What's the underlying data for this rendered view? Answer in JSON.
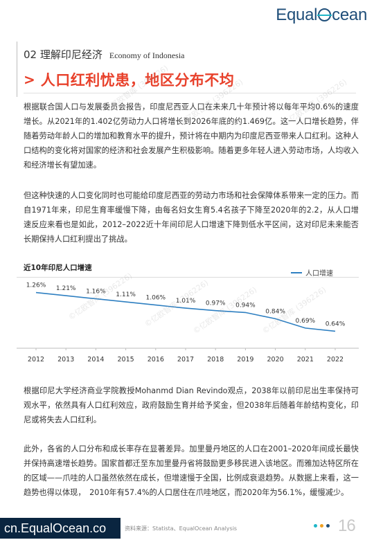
{
  "header": {
    "logo_before": "Equal",
    "logo_after": "cean",
    "section_cn": "02 理解印尼经济",
    "section_en": "Economy of Indonesia",
    "title_chevron": ">",
    "title": "人口红利忧患，地区分布不均"
  },
  "body": {
    "p1": "根据联合国人口与发展委员会报告，印度尼西亚人口在未来几十年预计将以每年平均0.6%的速度增长。从2021年的1.402亿劳动力人口将增长到2026年底的约1.469亿。这一人口增长趋势，伴随着劳动年龄人口的增加和教育水平的提升，预计将在中期内为印度尼西亚带来人口红利。这种人口结构的变化将对国家的经济和社会发展产生积极影响。随着更多年轻人进入劳动市场，人均收入和经济增长有望加速。",
    "p2": "但这种快速的人口变化同时也可能给印度尼西亚的劳动力市场和社会保障体系带来一定的压力。而自1971年来，印尼生育率缓慢下降，由每名妇女生育5.4名孩子下降至2020年的2.2，从人口增速反应来看也是如此，2012–2022近十年间印尼人口增速下降到低水平区间，这对印尼未来能否长期保持人口红利提出了挑战。",
    "p3": "根据印尼大学经济商业学院教授Mohanmd Dian Revindo观点，2038年以前印尼出生率保持可观水平，依然具有人口红利效应，政府鼓励生育并给予奖金，但2038年后随着年龄结构变化，印尼或将失去人口红利。",
    "p4": "此外，各省的人口分布和成长率存在显著差异。加里曼丹地区的人口在2001–2020年间成长最快并保持高速增长趋势。国家首都迁至东加里曼丹省将鼓励更多移民进入该地区。而雅加达特区所在的区域——爪哇的人口虽然依然在成长，但增速慢于全国，比例成衰退趋势。从数据上来看，这一趋势也得以体现，　2010年有57.4%的人口居住在爪哇地区，而2020年为56.1%，缓慢减少。"
  },
  "chart_data": {
    "type": "line",
    "title": "近10年印尼人口增速",
    "x": [
      "2012",
      "2013",
      "2014",
      "2015",
      "2016",
      "2017",
      "2018",
      "2019",
      "2020",
      "2021",
      "2022"
    ],
    "series": [
      {
        "name": "人口增速",
        "values": [
          1.26,
          1.21,
          1.16,
          1.11,
          1.06,
          1.01,
          0.97,
          0.94,
          0.84,
          0.69,
          0.64
        ],
        "labels": [
          "1.26%",
          "1.21%",
          "1.16%",
          "1.11%",
          "1.06%",
          "1.01%",
          "0.97%",
          "0.94%",
          "0.84%",
          "0.69%",
          "0.64%"
        ]
      }
    ],
    "ylim": [
      0.4,
      1.4
    ],
    "legend": "top-right",
    "grid": false,
    "line_color": "#2e7fc1"
  },
  "watermark_text": "©亿欧智库 (396226)",
  "footer": {
    "url": "cn.EqualOcean.co",
    "source": "资料来源：Statista、EqualOcean Analysis",
    "page": "16",
    "dot_colors": [
      "#1fb6c8",
      "#f0a020",
      "#1f4e79"
    ]
  }
}
